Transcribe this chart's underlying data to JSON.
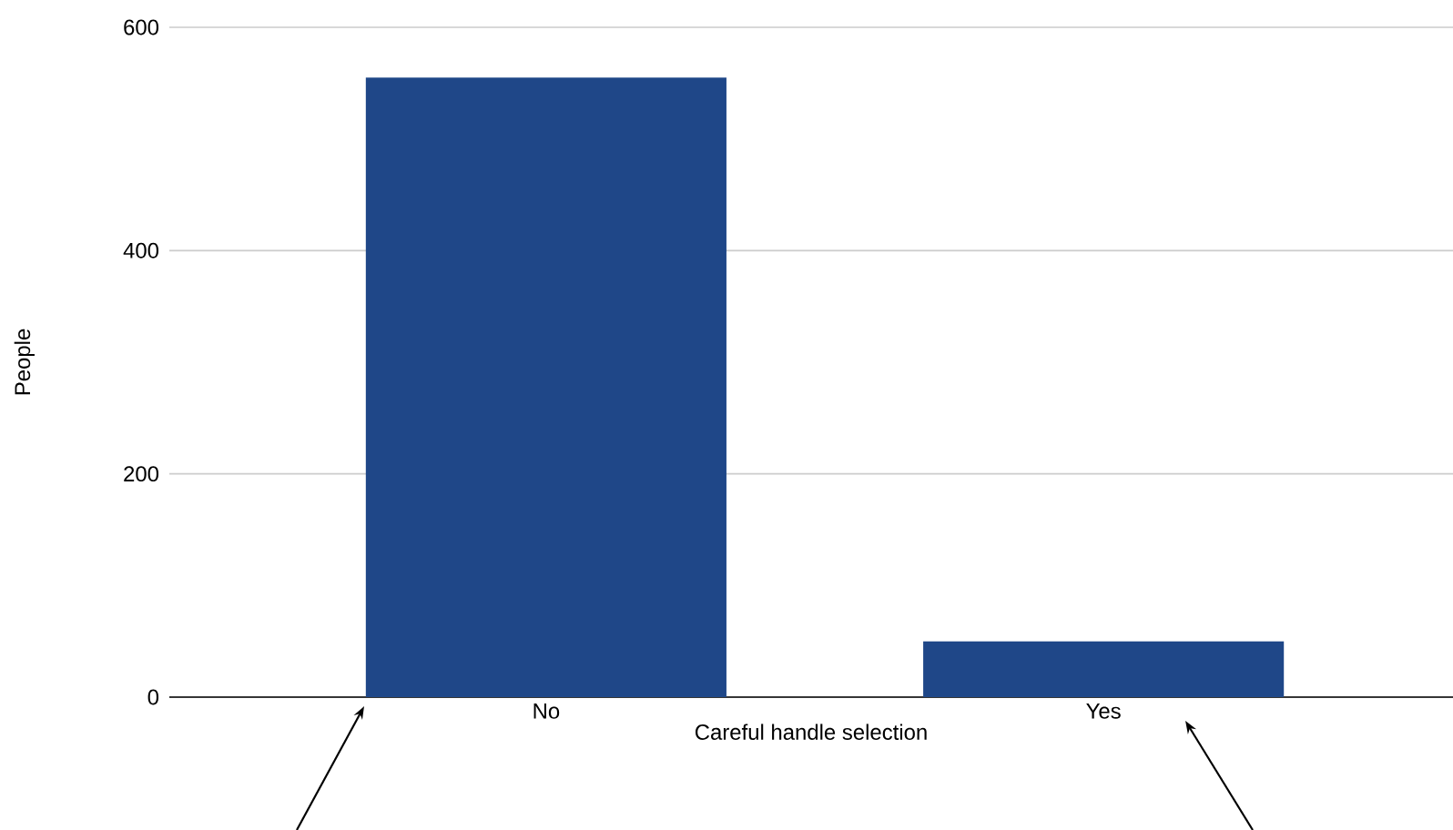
{
  "chart_data": {
    "type": "bar",
    "xlabel": "Careful handle selection",
    "ylabel": "People",
    "categories": [
      "No",
      "Yes"
    ],
    "values": [
      555,
      50
    ],
    "color": "#1f4788",
    "ylim": [
      0,
      600
    ],
    "yticks": [
      0,
      200,
      400,
      600
    ],
    "grid": "y"
  }
}
